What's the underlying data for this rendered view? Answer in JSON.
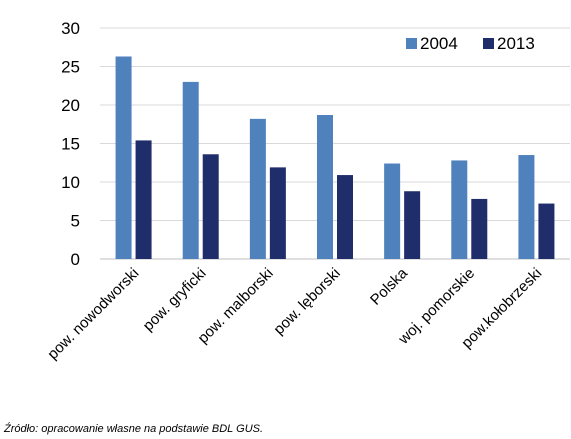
{
  "chart_data": {
    "type": "bar",
    "categories": [
      "pow. nowodworski",
      "pow. gryficki",
      "pow. malborski",
      "pow. lęborski",
      "Polska",
      "woj. pomorskie",
      "pow.kołobrzeski"
    ],
    "series": [
      {
        "name": "2004",
        "color": "#4F81BD",
        "values": [
          26.3,
          23.0,
          18.2,
          18.7,
          12.4,
          12.8,
          13.5
        ]
      },
      {
        "name": "2013",
        "color": "#1F2D6B",
        "values": [
          15.4,
          13.6,
          11.9,
          10.9,
          8.8,
          7.8,
          7.2
        ]
      }
    ],
    "ylim": [
      0,
      30
    ],
    "yticks": [
      "0",
      "5",
      "10",
      "15",
      "20",
      "25",
      "30"
    ],
    "grid": true,
    "legend_position": "top-right"
  },
  "source_note": "Źródło: opracowanie własne na podstawie BDL  GUS."
}
